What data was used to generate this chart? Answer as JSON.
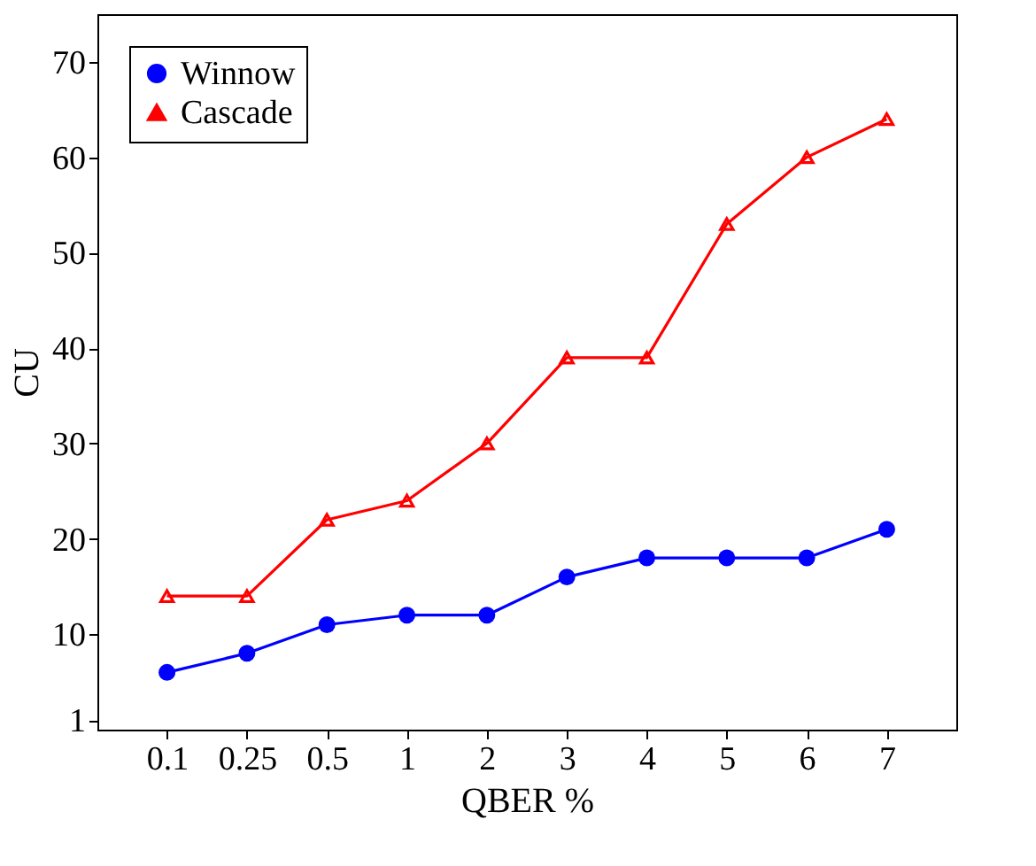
{
  "chart_data": {
    "type": "line",
    "xlabel": "QBER %",
    "ylabel": "CU",
    "categories": [
      "0.1",
      "0.25",
      "0.5",
      "1",
      "2",
      "3",
      "4",
      "5",
      "6",
      "7"
    ],
    "series": [
      {
        "name": "Winnow",
        "color": "#0000ff",
        "marker": "circle",
        "values": [
          6,
          8,
          11,
          12,
          12,
          16,
          18,
          18,
          18,
          21
        ]
      },
      {
        "name": "Cascade",
        "color": "#ff0000",
        "marker": "triangle",
        "values": [
          14,
          14,
          22,
          24,
          30,
          39,
          39,
          53,
          60,
          64
        ]
      }
    ],
    "ylim": [
      0,
      75
    ],
    "yticks": [
      1,
      10,
      20,
      30,
      40,
      50,
      60,
      70
    ],
    "grid": false,
    "legend": "top left",
    "line_style": "solid"
  }
}
